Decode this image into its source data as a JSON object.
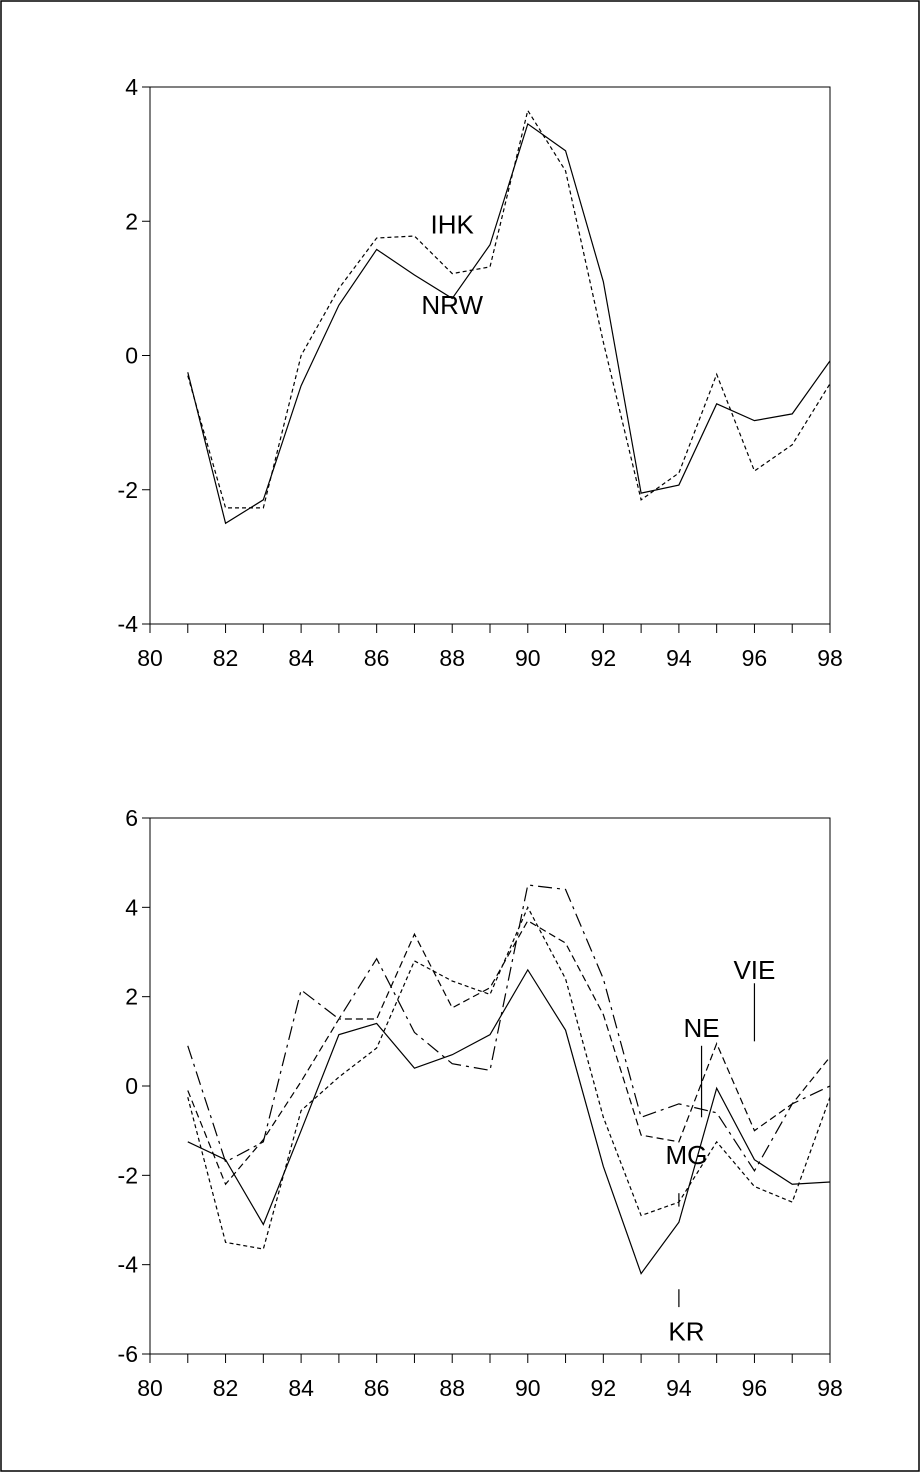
{
  "chart_data": [
    {
      "type": "line",
      "title": "",
      "xlabel": "",
      "ylabel": "",
      "x": [
        81,
        82,
        83,
        84,
        85,
        86,
        87,
        88,
        89,
        90,
        91,
        92,
        93,
        94,
        95,
        96,
        97,
        98
      ],
      "xlim": [
        80,
        98
      ],
      "ylim": [
        -4,
        4
      ],
      "xticks": [
        "80",
        "82",
        "84",
        "86",
        "88",
        "90",
        "92",
        "94",
        "96",
        "98"
      ],
      "yticks": [
        "-4",
        "-2",
        "0",
        "2",
        "4"
      ],
      "grid": false,
      "series": [
        {
          "name": "NRW",
          "style": "solid",
          "values": [
            -0.25,
            -2.5,
            -2.15,
            -0.45,
            0.75,
            1.58,
            1.2,
            0.85,
            1.65,
            3.45,
            3.05,
            1.1,
            -2.05,
            -1.93,
            -0.72,
            -0.97,
            -0.87,
            -0.08
          ]
        },
        {
          "name": "IHK",
          "style": "dotted",
          "values": [
            -0.3,
            -2.27,
            -2.27,
            0.0,
            1.0,
            1.75,
            1.78,
            1.22,
            1.32,
            3.65,
            2.75,
            0.2,
            -2.15,
            -1.75,
            -0.28,
            -1.72,
            -1.33,
            -0.42
          ]
        }
      ],
      "annotations": [
        {
          "text": "IHK",
          "x": 88,
          "y": 1.95
        },
        {
          "text": "NRW",
          "x": 88,
          "y": 0.75
        }
      ]
    },
    {
      "type": "line",
      "title": "",
      "xlabel": "",
      "ylabel": "",
      "x": [
        81,
        82,
        83,
        84,
        85,
        86,
        87,
        88,
        89,
        90,
        91,
        92,
        93,
        94,
        95,
        96,
        97,
        98
      ],
      "xlim": [
        80,
        98
      ],
      "ylim": [
        -6,
        6
      ],
      "xticks": [
        "80",
        "82",
        "84",
        "86",
        "88",
        "90",
        "92",
        "94",
        "96",
        "98"
      ],
      "yticks": [
        "-6",
        "-4",
        "-2",
        "0",
        "2",
        "4",
        "6"
      ],
      "grid": false,
      "series": [
        {
          "name": "KR",
          "style": "solid",
          "values": [
            -1.25,
            -1.65,
            -3.1,
            -1.0,
            1.15,
            1.4,
            0.4,
            0.7,
            1.15,
            2.6,
            1.25,
            -1.8,
            -4.2,
            -3.05,
            -0.05,
            -1.65,
            -2.2,
            -2.15
          ]
        },
        {
          "name": "MG",
          "style": "dotted",
          "values": [
            -0.25,
            -3.5,
            -3.65,
            -0.55,
            0.2,
            0.85,
            2.8,
            2.35,
            2.05,
            4.0,
            2.4,
            -0.7,
            -2.9,
            -2.6,
            -1.25,
            -2.25,
            -2.6,
            -0.25
          ]
        },
        {
          "name": "NE",
          "style": "dashed",
          "values": [
            -0.1,
            -2.2,
            -1.2,
            0.1,
            1.5,
            1.5,
            3.4,
            1.75,
            2.2,
            3.7,
            3.2,
            1.6,
            -1.1,
            -1.25,
            0.95,
            -1.0,
            -0.4,
            0.65
          ]
        },
        {
          "name": "VIE",
          "style": "longdash",
          "values": [
            0.9,
            -1.7,
            -1.25,
            2.15,
            1.5,
            2.85,
            1.2,
            0.5,
            0.35,
            4.5,
            4.4,
            2.4,
            -0.7,
            -0.4,
            -0.6,
            -1.9,
            -0.4,
            0.0
          ]
        }
      ],
      "annotations": [
        {
          "text": "VIE",
          "x": 96,
          "y": 2.6
        },
        {
          "text": "NE",
          "x": 94.6,
          "y": 1.3
        },
        {
          "text": "MG",
          "x": 94.2,
          "y": -1.55
        },
        {
          "text": "KR",
          "x": 94.2,
          "y": -5.5
        }
      ],
      "leader_lines": [
        {
          "x": 96,
          "y1": 1.0,
          "y2": 2.3
        },
        {
          "x": 94.6,
          "y1": -0.7,
          "y2": 0.9
        },
        {
          "x": 94.0,
          "y1": -2.4,
          "y2": -2.7
        },
        {
          "x": 94.0,
          "y1": -4.55,
          "y2": -4.95
        }
      ]
    }
  ]
}
